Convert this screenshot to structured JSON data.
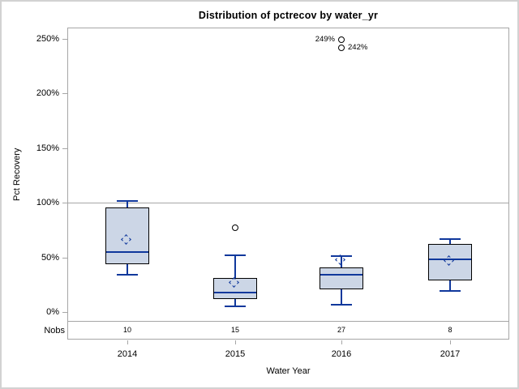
{
  "chart_data": {
    "type": "boxplot",
    "title": "Distribution of pctrecov by water_yr",
    "xlabel": "Water Year",
    "ylabel": "Pct Recovery",
    "nobs_label": "Nobs",
    "ylim": [
      0,
      250
    ],
    "reference_line": 100,
    "grid": "off",
    "y_ticks": [
      {
        "value": 0,
        "label": "0%"
      },
      {
        "value": 50,
        "label": "50%"
      },
      {
        "value": 100,
        "label": "100%"
      },
      {
        "value": 150,
        "label": "150%"
      },
      {
        "value": 200,
        "label": "200%"
      },
      {
        "value": 250,
        "label": "250%"
      }
    ],
    "categories": [
      "2014",
      "2015",
      "2016",
      "2017"
    ],
    "nobs": [
      "10",
      "15",
      "27",
      "8"
    ],
    "series": [
      {
        "category": "2014",
        "whisker_low": 34,
        "q1": 44,
        "median": 55,
        "q3": 96,
        "whisker_high": 102,
        "mean": 65,
        "outliers": []
      },
      {
        "category": "2015",
        "whisker_low": 5,
        "q1": 12,
        "median": 18,
        "q3": 31,
        "whisker_high": 52,
        "mean": 26,
        "outliers": [
          {
            "value": 77,
            "label": "",
            "label_side": "none"
          }
        ]
      },
      {
        "category": "2016",
        "whisker_low": 7,
        "q1": 21,
        "median": 34,
        "q3": 41,
        "whisker_high": 51,
        "mean": 47,
        "outliers": [
          {
            "value": 249,
            "label": "249%",
            "label_side": "left"
          },
          {
            "value": 242,
            "label": "242%",
            "label_side": "right"
          }
        ]
      },
      {
        "category": "2017",
        "whisker_low": 19,
        "q1": 29,
        "median": 48,
        "q3": 62,
        "whisker_high": 67,
        "mean": 46,
        "outliers": []
      }
    ],
    "colors": {
      "box_fill": "#ccd6e6",
      "box_border": "#000000",
      "line": "#10389c",
      "axis": "#a6a6a6",
      "text": "#000000",
      "figure_border": "#d2d2d2"
    }
  }
}
